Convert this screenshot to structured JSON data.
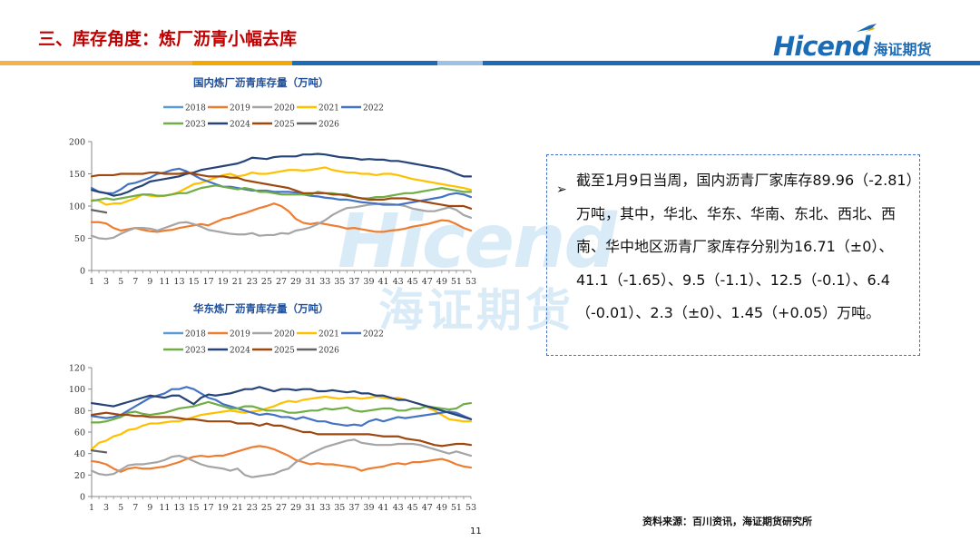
{
  "header": {
    "title": "三、库存角度：炼厂沥青小幅去库",
    "logo_text": "Hicend",
    "logo_cn": "海证期货"
  },
  "watermark": {
    "main": "Hicend",
    "cn": "海证期货"
  },
  "note": {
    "text": "截至1月9日当周，国内沥青厂家库存89.96（-2.81）万吨，其中，华北、华东、华南、东北、西北、西南、华中地区沥青厂家库存分别为16.71（±0）、41.1（-1.65）、9.5（-1.1）、12.5（-0.1）、6.4（-0.01）、2.3（±0）、1.45（+0.05）万吨。"
  },
  "source": "资料来源：百川资讯，海证期货研究所",
  "page_number": "11",
  "colors": {
    "2018": "#5b9bd5",
    "2019": "#ed7d31",
    "2020": "#a5a5a5",
    "2021": "#ffc000",
    "2022": "#4472c4",
    "2023": "#70ad47",
    "2024": "#264478",
    "2025": "#9e480e",
    "2026": "#636363"
  },
  "chart_data": [
    {
      "type": "line",
      "title": "国内炼厂沥青库存量（万吨）",
      "ylim": [
        0,
        200
      ],
      "yticks": [
        0,
        50,
        100,
        150,
        200
      ],
      "x_ticks": [
        "1",
        "3",
        "5",
        "7",
        "9",
        "11",
        "13",
        "15",
        "17",
        "19",
        "21",
        "23",
        "25",
        "27",
        "29",
        "31",
        "33",
        "35",
        "37",
        "39",
        "41",
        "43",
        "45",
        "47",
        "49",
        "51",
        "53"
      ],
      "legend": [
        "2018",
        "2019",
        "2020",
        "2021",
        "2022",
        "2023",
        "2024",
        "2025",
        "2026"
      ],
      "legend_position": "top",
      "series": [
        {
          "name": "2018",
          "values": []
        },
        {
          "name": "2019",
          "values": [
            75,
            75,
            73,
            66,
            62,
            64,
            66,
            63,
            61,
            60,
            62,
            63,
            66,
            68,
            70,
            72,
            70,
            75,
            80,
            82,
            86,
            89,
            93,
            97,
            100,
            104,
            100,
            92,
            80,
            74,
            72,
            74,
            72,
            70,
            68,
            65,
            66,
            64,
            62,
            60,
            60,
            62,
            63,
            65,
            68,
            70,
            72,
            75,
            78,
            77,
            72,
            66,
            62
          ]
        },
        {
          "name": "2020",
          "values": [
            54,
            50,
            49,
            51,
            57,
            62,
            66,
            66,
            65,
            62,
            66,
            70,
            74,
            75,
            72,
            68,
            63,
            61,
            59,
            57,
            56,
            56,
            58,
            54,
            55,
            55,
            58,
            57,
            62,
            64,
            67,
            72,
            78,
            86,
            92,
            97,
            98,
            100,
            102,
            103,
            104,
            103,
            102,
            100,
            96,
            94,
            92,
            92,
            95,
            98,
            94,
            86,
            82
          ]
        },
        {
          "name": "2021",
          "values": [
            110,
            108,
            102,
            104,
            104,
            108,
            112,
            118,
            116,
            115,
            116,
            118,
            122,
            128,
            134,
            136,
            140,
            144,
            148,
            150,
            146,
            148,
            152,
            150,
            150,
            152,
            154,
            156,
            156,
            155,
            156,
            158,
            160,
            156,
            154,
            152,
            152,
            150,
            150,
            148,
            150,
            150,
            148,
            145,
            142,
            140,
            138,
            136,
            134,
            132,
            130,
            128,
            125
          ]
        },
        {
          "name": "2022",
          "values": [
            128,
            122,
            120,
            120,
            126,
            134,
            136,
            140,
            144,
            150,
            152,
            156,
            158,
            154,
            148,
            142,
            138,
            134,
            130,
            130,
            128,
            126,
            124,
            124,
            124,
            122,
            122,
            122,
            121,
            118,
            116,
            115,
            113,
            112,
            110,
            110,
            108,
            106,
            105,
            104,
            102,
            102,
            102,
            104,
            106,
            108,
            110,
            112,
            114,
            118,
            120,
            118,
            114
          ]
        },
        {
          "name": "2023",
          "values": [
            108,
            110,
            112,
            110,
            112,
            114,
            116,
            118,
            118,
            116,
            116,
            118,
            120,
            120,
            124,
            128,
            130,
            132,
            130,
            128,
            126,
            128,
            126,
            122,
            122,
            120,
            118,
            118,
            118,
            118,
            118,
            122,
            120,
            120,
            118,
            118,
            114,
            112,
            112,
            114,
            114,
            116,
            118,
            120,
            120,
            122,
            124,
            126,
            128,
            126,
            124,
            122,
            122
          ]
        },
        {
          "name": "2024",
          "values": [
            125,
            122,
            120,
            116,
            118,
            122,
            128,
            132,
            138,
            140,
            142,
            144,
            146,
            150,
            152,
            156,
            158,
            160,
            162,
            164,
            166,
            170,
            175,
            174,
            173,
            176,
            177,
            177,
            177,
            180,
            180,
            181,
            180,
            178,
            176,
            175,
            174,
            172,
            173,
            172,
            172,
            170,
            170,
            168,
            166,
            164,
            162,
            160,
            158,
            155,
            150,
            146,
            146
          ]
        },
        {
          "name": "2025",
          "values": [
            146,
            148,
            148,
            148,
            150,
            150,
            150,
            150,
            152,
            152,
            150,
            150,
            150,
            152,
            150,
            148,
            146,
            146,
            146,
            144,
            144,
            140,
            138,
            136,
            134,
            132,
            130,
            128,
            124,
            120,
            120,
            120,
            120,
            118,
            118,
            116,
            114,
            112,
            110,
            110,
            110,
            112,
            112,
            112,
            110,
            108,
            106,
            104,
            102,
            100,
            100,
            100,
            96
          ]
        },
        {
          "name": "2026",
          "values": [
            94,
            92,
            89.96
          ]
        }
      ]
    },
    {
      "type": "line",
      "title": "华东炼厂沥青库存量（万吨）",
      "ylim": [
        0,
        120
      ],
      "yticks": [
        0,
        20,
        40,
        60,
        80,
        100,
        120
      ],
      "x_ticks": [
        "1",
        "3",
        "5",
        "7",
        "9",
        "11",
        "13",
        "15",
        "17",
        "19",
        "21",
        "23",
        "25",
        "27",
        "29",
        "31",
        "33",
        "35",
        "37",
        "39",
        "41",
        "43",
        "45",
        "47",
        "49",
        "51",
        "53"
      ],
      "legend": [
        "2018",
        "2019",
        "2020",
        "2021",
        "2022",
        "2023",
        "2024",
        "2025",
        "2026"
      ],
      "legend_position": "top",
      "series": [
        {
          "name": "2018",
          "values": []
        },
        {
          "name": "2019",
          "values": [
            33,
            32,
            30,
            26,
            23,
            26,
            27,
            26,
            26,
            27,
            28,
            30,
            32,
            35,
            37,
            38,
            37,
            38,
            38,
            40,
            42,
            44,
            46,
            47,
            46,
            44,
            41,
            38,
            34,
            32,
            30,
            31,
            30,
            30,
            29,
            28,
            27,
            24,
            26,
            27,
            28,
            30,
            31,
            30,
            32,
            32,
            33,
            34,
            35,
            33,
            30,
            28,
            27
          ]
        },
        {
          "name": "2020",
          "values": [
            24,
            21,
            20,
            21,
            25,
            29,
            30,
            30,
            31,
            32,
            34,
            37,
            38,
            36,
            33,
            30,
            28,
            27,
            26,
            24,
            26,
            20,
            18,
            19,
            20,
            21,
            24,
            26,
            32,
            36,
            40,
            43,
            46,
            48,
            50,
            52,
            53,
            50,
            49,
            48,
            48,
            48,
            49,
            49,
            49,
            48,
            46,
            44,
            42,
            40,
            42,
            40,
            38
          ]
        },
        {
          "name": "2021",
          "values": [
            44,
            50,
            52,
            56,
            58,
            62,
            63,
            66,
            68,
            68,
            69,
            70,
            70,
            72,
            74,
            76,
            77,
            78,
            79,
            80,
            79,
            78,
            79,
            80,
            82,
            84,
            87,
            89,
            88,
            90,
            91,
            92,
            93,
            92,
            91,
            92,
            92,
            91,
            92,
            93,
            92,
            91,
            92,
            90,
            88,
            86,
            83,
            80,
            76,
            72,
            71,
            70,
            70
          ]
        },
        {
          "name": "2022",
          "values": [
            75,
            74,
            73,
            74,
            76,
            80,
            84,
            88,
            92,
            94,
            96,
            100,
            100,
            102,
            100,
            96,
            92,
            90,
            86,
            84,
            82,
            80,
            78,
            76,
            77,
            76,
            74,
            74,
            72,
            74,
            72,
            70,
            70,
            68,
            67,
            66,
            67,
            66,
            70,
            72,
            70,
            72,
            74,
            73,
            74,
            75,
            76,
            77,
            78,
            79,
            78,
            75,
            72
          ]
        },
        {
          "name": "2023",
          "values": [
            69,
            69,
            70,
            72,
            74,
            78,
            79,
            77,
            76,
            77,
            78,
            80,
            82,
            83,
            84,
            86,
            88,
            86,
            84,
            82,
            82,
            84,
            84,
            82,
            80,
            80,
            80,
            78,
            78,
            79,
            80,
            80,
            82,
            81,
            82,
            83,
            80,
            79,
            80,
            81,
            82,
            82,
            80,
            80,
            82,
            82,
            84,
            83,
            82,
            81,
            82,
            86,
            87
          ]
        },
        {
          "name": "2024",
          "values": [
            87,
            86,
            85,
            84,
            86,
            88,
            90,
            92,
            94,
            93,
            92,
            94,
            94,
            90,
            86,
            92,
            95,
            94,
            95,
            96,
            98,
            100,
            100,
            102,
            100,
            98,
            100,
            100,
            99,
            100,
            100,
            98,
            98,
            99,
            98,
            97,
            98,
            96,
            96,
            94,
            94,
            92,
            90,
            90,
            88,
            86,
            84,
            82,
            80,
            78,
            76,
            74,
            72
          ]
        },
        {
          "name": "2025",
          "values": [
            76,
            77,
            78,
            77,
            76,
            76,
            75,
            75,
            74,
            74,
            74,
            74,
            73,
            72,
            72,
            71,
            70,
            70,
            70,
            70,
            68,
            68,
            68,
            66,
            68,
            66,
            66,
            64,
            62,
            60,
            60,
            58,
            58,
            58,
            58,
            58,
            58,
            58,
            58,
            57,
            56,
            56,
            56,
            54,
            53,
            52,
            50,
            48,
            47,
            48,
            49,
            49,
            48
          ]
        },
        {
          "name": "2026",
          "values": [
            43,
            42,
            41.1
          ]
        }
      ]
    }
  ]
}
